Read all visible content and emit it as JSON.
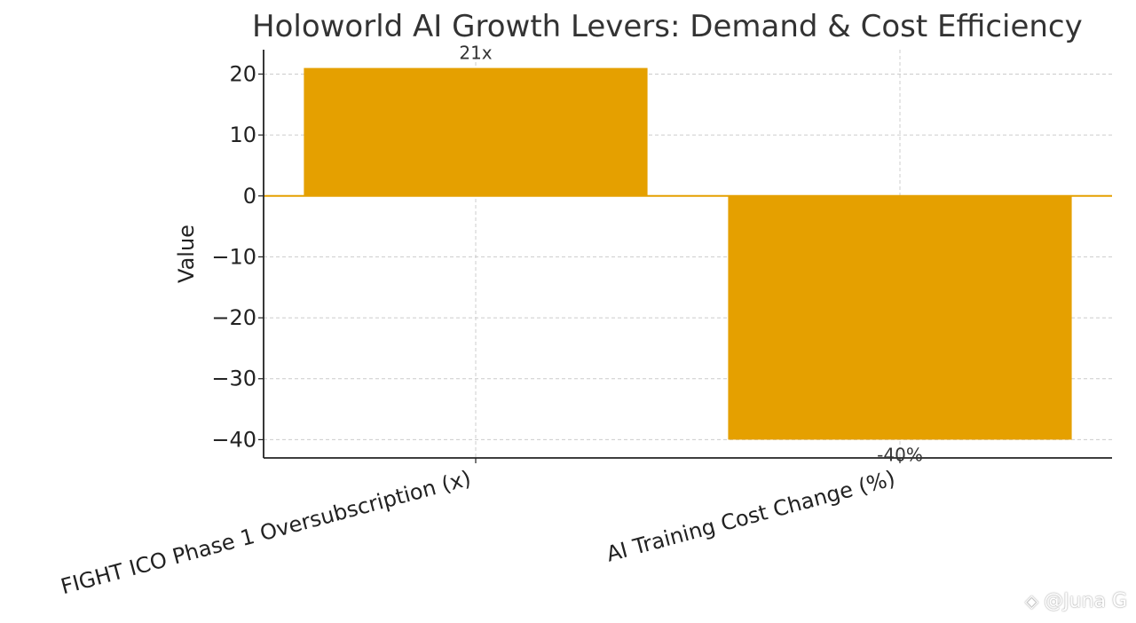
{
  "chart_data": {
    "type": "bar",
    "title": "Holoworld AI Growth Levers: Demand & Cost Efficiency",
    "xlabel": "",
    "ylabel": "Value",
    "categories": [
      "FIGHT ICO Phase 1 Oversubscription (x)",
      "AI Training Cost Change (%)"
    ],
    "values": [
      21,
      -40
    ],
    "data_labels": [
      "21x",
      "-40%"
    ],
    "ylim": [
      -43,
      24
    ],
    "yticks": [
      20,
      10,
      0,
      -10,
      -20,
      -30,
      -40
    ],
    "ytick_labels": [
      "20",
      "10",
      "0",
      "−10",
      "−20",
      "−30",
      "−40"
    ],
    "grid": true,
    "bar_color": "#E5A000",
    "zero_line_color": "#E5A000"
  },
  "watermark": {
    "logo": "binance-square-logo-icon",
    "text": "@Juna G"
  }
}
